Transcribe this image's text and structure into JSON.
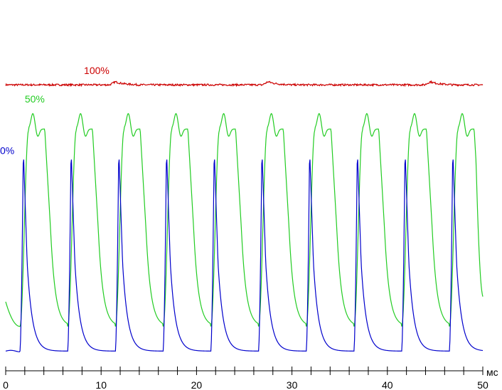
{
  "chart_data": {
    "type": "line",
    "title": "",
    "xlabel": "мс",
    "ylabel": "",
    "xlim": [
      0,
      50
    ],
    "ylim": [
      0,
      100
    ],
    "x_ticks": [
      0,
      10,
      20,
      30,
      40,
      50
    ],
    "x_tick_labels": [
      "0",
      "10",
      "20",
      "30",
      "40",
      "50"
    ],
    "x_minor_step": 2,
    "grid": false,
    "legend": "none",
    "axis_color": "#000000",
    "series": [
      {
        "name": "100%",
        "color": "#cc0000",
        "baseline": 103.5,
        "noise": 0.35,
        "bumps": [
          [
            11.5,
            1.2
          ],
          [
            27.5,
            1.2
          ],
          [
            44.5,
            1.2
          ]
        ]
      },
      {
        "name": "50%",
        "color": "#22cc22",
        "period": 5.0,
        "phase": 1.5,
        "low": 10.5,
        "high": 92,
        "rise": 0.9,
        "start_value": 20,
        "end_value": 22
      },
      {
        "name": "0%",
        "color": "#0000cc",
        "period": 5.0,
        "phase": 1.5,
        "low": 1,
        "high": 79,
        "rise": 0.7,
        "start_value": 1.5,
        "end_value": 1.5
      }
    ]
  }
}
